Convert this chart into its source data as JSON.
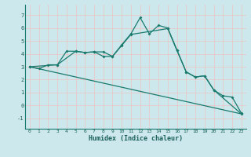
{
  "title": "",
  "xlabel": "Humidex (Indice chaleur)",
  "background_color": "#cce8ec",
  "grid_color": "#b0d0d8",
  "line_color": "#1a7a6e",
  "xlim": [
    -0.5,
    23.5
  ],
  "ylim": [
    -1.8,
    7.8
  ],
  "yticks": [
    -1,
    0,
    1,
    2,
    3,
    4,
    5,
    6,
    7
  ],
  "xticks": [
    0,
    1,
    2,
    3,
    4,
    5,
    6,
    7,
    8,
    9,
    10,
    11,
    12,
    13,
    14,
    15,
    16,
    17,
    18,
    19,
    20,
    21,
    22,
    23
  ],
  "series1_x": [
    0,
    1,
    2,
    3,
    4,
    5,
    6,
    7,
    8,
    9,
    10,
    11,
    12,
    13,
    14,
    15,
    16,
    17,
    18,
    19,
    20,
    21,
    22,
    23
  ],
  "series1_y": [
    3.0,
    2.85,
    3.15,
    3.15,
    4.2,
    4.2,
    4.1,
    4.15,
    4.15,
    3.8,
    4.7,
    5.55,
    6.8,
    5.55,
    6.2,
    6.0,
    4.3,
    2.6,
    2.2,
    2.3,
    1.2,
    0.75,
    0.65,
    -0.6
  ],
  "series2_x": [
    0,
    3,
    5,
    6,
    7,
    8,
    9,
    10,
    11,
    15,
    16,
    17,
    18,
    19,
    20,
    23
  ],
  "series2_y": [
    3.0,
    3.15,
    4.2,
    4.1,
    4.15,
    3.8,
    3.8,
    4.65,
    5.5,
    5.95,
    4.25,
    2.6,
    2.2,
    2.3,
    1.2,
    -0.65
  ],
  "series3_x": [
    0,
    23
  ],
  "series3_y": [
    3.0,
    -0.65
  ]
}
